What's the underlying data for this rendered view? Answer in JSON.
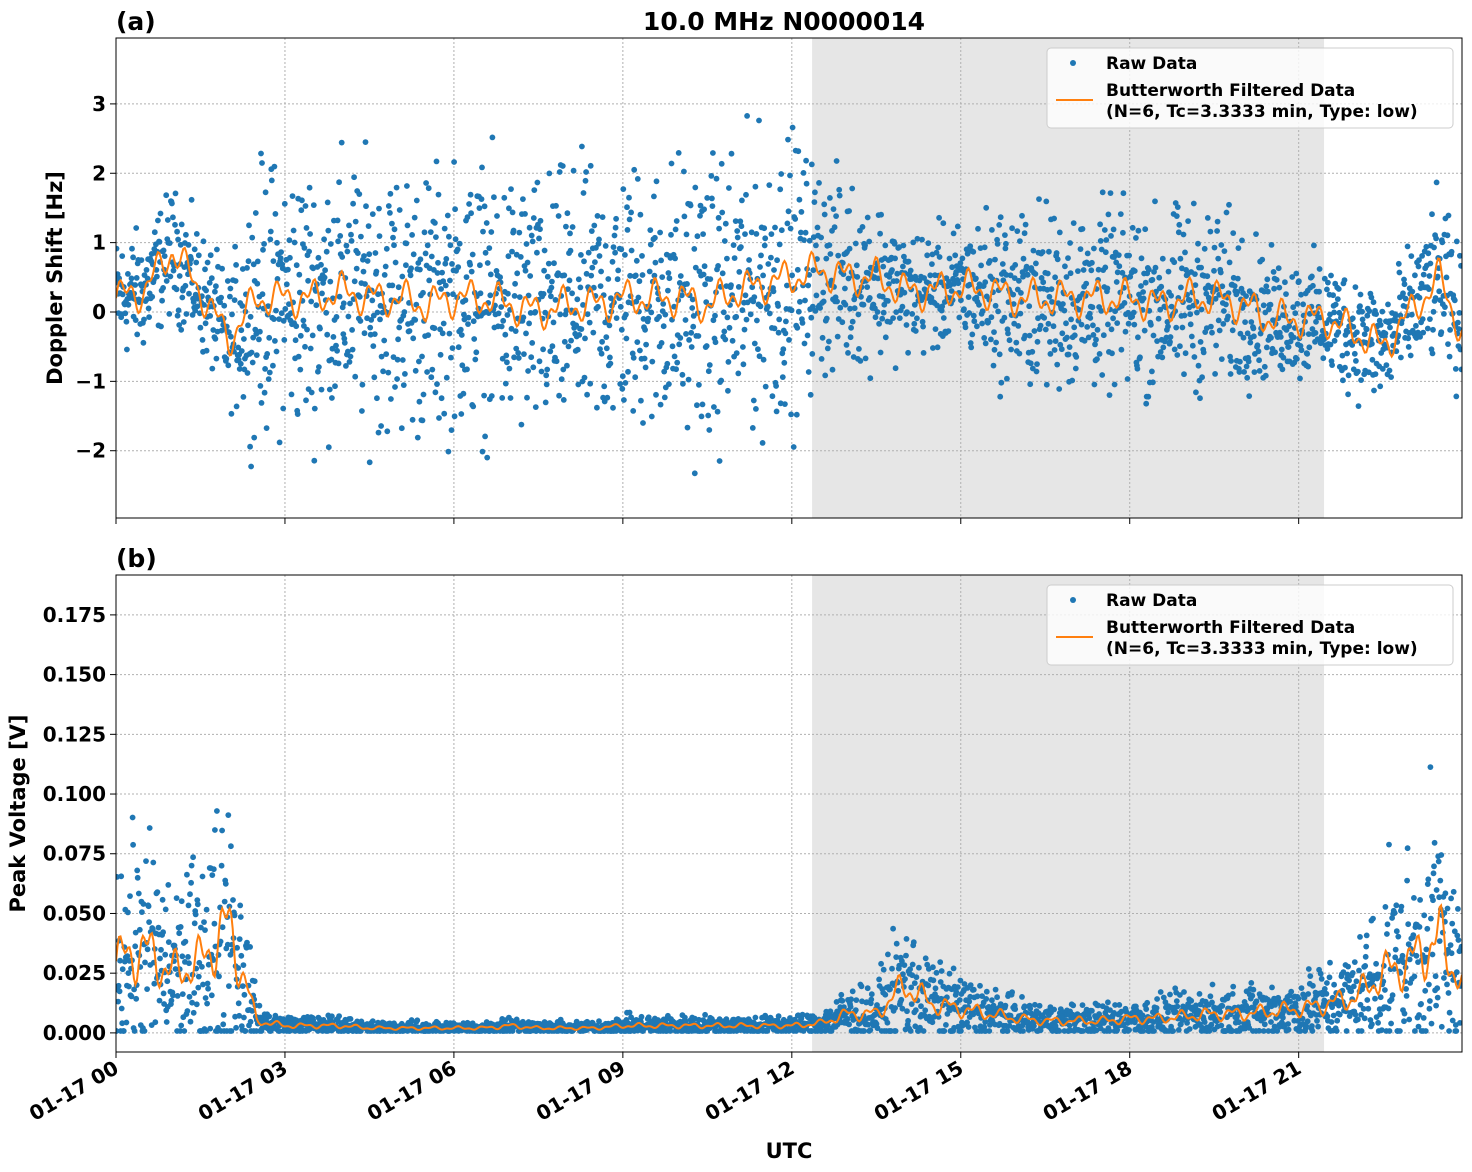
{
  "title": "10.0 MHz N0000014",
  "colors": {
    "raw": "#1f77b4",
    "filtered": "#ff7f0e",
    "shade": "#e6e6e6"
  },
  "chart_data": [
    {
      "type": "scatter",
      "panel_label": "(a)",
      "ylabel": "Doppler Shift [Hz]",
      "xlabel": "",
      "xlim_hours": [
        0,
        23.9
      ],
      "ylim": [
        -2.97,
        3.95
      ],
      "yticks": [
        -2,
        -1,
        0,
        1,
        2,
        3
      ],
      "ytick_labels": [
        "−2",
        "−1",
        "0",
        "1",
        "2",
        "3"
      ],
      "shaded_region_hours": [
        12.36,
        21.45
      ],
      "legend": {
        "placement": "top-right",
        "raw": "Raw Data",
        "filtered": "Butterworth Filtered Data",
        "filtered_params": "(N=6, Tc=3.3333 min, Type: low)"
      },
      "x_hours": [
        0,
        0.5,
        1,
        1.5,
        2,
        2.5,
        3,
        3.5,
        4,
        4.5,
        5,
        5.5,
        6,
        6.5,
        7,
        7.5,
        8,
        8.5,
        9,
        9.5,
        10,
        10.5,
        11,
        11.5,
        12,
        12.5,
        13,
        13.5,
        14,
        14.5,
        15,
        15.5,
        16,
        16.5,
        17,
        17.5,
        18,
        18.5,
        19,
        19.5,
        20,
        20.5,
        21,
        21.5,
        22,
        22.5,
        23,
        23.5,
        23.9
      ],
      "filtered": [
        0.2,
        0.3,
        0.9,
        0.3,
        -0.4,
        0.2,
        0.2,
        0.2,
        0.3,
        0.2,
        0.2,
        0.1,
        0.2,
        0.2,
        0.1,
        0.0,
        0.1,
        0.1,
        0.2,
        0.2,
        0.2,
        0.1,
        0.3,
        0.4,
        0.5,
        0.6,
        0.5,
        0.5,
        0.3,
        0.3,
        0.35,
        0.3,
        0.2,
        0.2,
        0.2,
        0.2,
        0.2,
        0.1,
        0.2,
        0.2,
        0.1,
        -0.1,
        -0.1,
        -0.1,
        -0.3,
        -0.5,
        0.0,
        0.5,
        -0.3
      ],
      "raw_spread": [
        0.6,
        0.6,
        0.6,
        0.6,
        0.6,
        1.3,
        1.3,
        1.3,
        1.3,
        1.3,
        1.3,
        1.3,
        1.3,
        1.3,
        1.3,
        1.3,
        1.3,
        1.3,
        1.3,
        1.3,
        1.4,
        1.4,
        1.4,
        1.4,
        1.4,
        1.0,
        0.9,
        0.8,
        0.6,
        0.6,
        0.6,
        0.8,
        0.9,
        0.9,
        0.9,
        0.9,
        0.9,
        0.9,
        0.9,
        0.9,
        0.8,
        0.6,
        0.6,
        0.6,
        0.6,
        0.6,
        0.6,
        0.8,
        0.7
      ]
    },
    {
      "type": "scatter",
      "panel_label": "(b)",
      "ylabel": "Peak Voltage [V]",
      "xlabel": "UTC",
      "xlim_hours": [
        0,
        23.9
      ],
      "ylim": [
        -0.008,
        0.1917
      ],
      "yticks": [
        0,
        0.025,
        0.05,
        0.075,
        0.1,
        0.125,
        0.15,
        0.175
      ],
      "ytick_labels": [
        "0.000",
        "0.025",
        "0.050",
        "0.075",
        "0.100",
        "0.125",
        "0.150",
        "0.175"
      ],
      "xticks_hours": [
        0,
        3,
        6,
        9,
        12,
        15,
        18,
        21
      ],
      "xtick_labels": [
        "01-17 00",
        "01-17 03",
        "01-17 06",
        "01-17 09",
        "01-17 12",
        "01-17 15",
        "01-17 18",
        "01-17 21"
      ],
      "shaded_region_hours": [
        12.36,
        21.45
      ],
      "legend": {
        "placement": "top-right",
        "raw": "Raw Data",
        "filtered": "Butterworth Filtered Data",
        "filtered_params": "(N=6, Tc=3.3333 min, Type: low)"
      },
      "x_hours": [
        0,
        0.5,
        1,
        1.5,
        2,
        2.5,
        3,
        3.5,
        4,
        4.5,
        5,
        5.5,
        6,
        6.5,
        7,
        7.5,
        8,
        8.5,
        9,
        9.5,
        10,
        10.5,
        11,
        11.5,
        12,
        12.5,
        13,
        13.5,
        14,
        14.5,
        15,
        15.5,
        16,
        16.5,
        17,
        17.5,
        18,
        18.5,
        19,
        19.5,
        20,
        20.5,
        21,
        21.5,
        22,
        22.5,
        23,
        23.5,
        23.9
      ],
      "filtered": [
        0.03,
        0.035,
        0.025,
        0.03,
        0.045,
        0.005,
        0.003,
        0.003,
        0.003,
        0.002,
        0.002,
        0.002,
        0.002,
        0.002,
        0.003,
        0.002,
        0.002,
        0.002,
        0.003,
        0.003,
        0.003,
        0.003,
        0.003,
        0.003,
        0.003,
        0.004,
        0.008,
        0.008,
        0.02,
        0.012,
        0.01,
        0.008,
        0.006,
        0.005,
        0.005,
        0.005,
        0.006,
        0.006,
        0.007,
        0.008,
        0.008,
        0.009,
        0.01,
        0.012,
        0.015,
        0.025,
        0.03,
        0.04,
        0.02
      ],
      "raw_spread_fraction": 0.7
    }
  ]
}
